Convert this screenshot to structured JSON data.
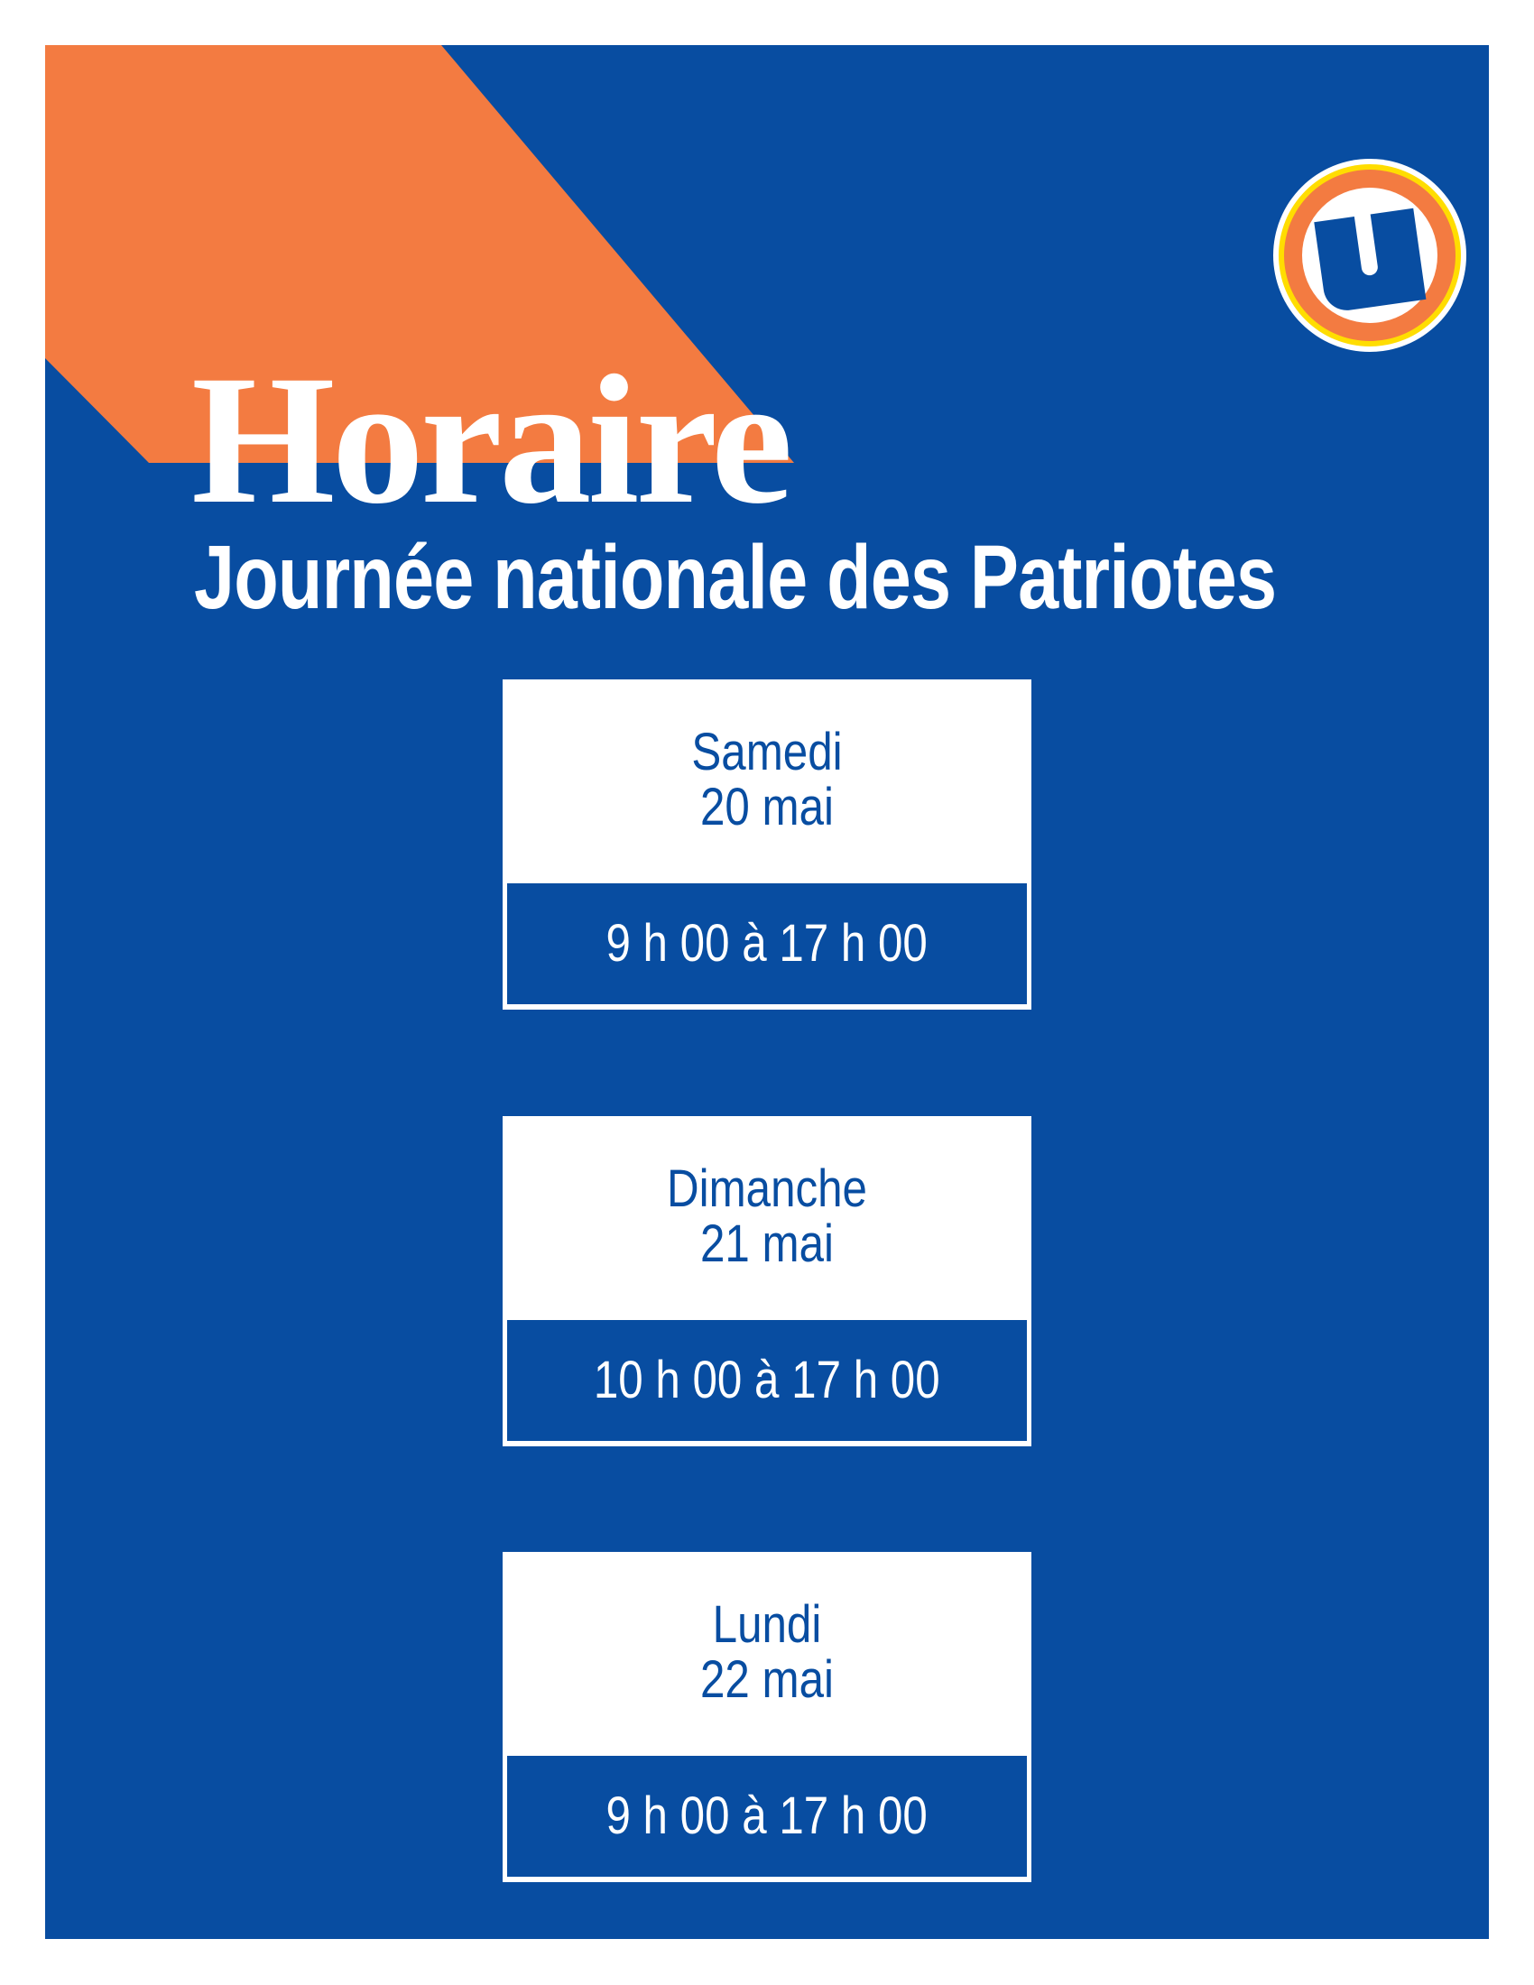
{
  "header": {
    "title": "Horaire",
    "subtitle": "Journée nationale des Patriotes"
  },
  "logo": {
    "name": "u-logo-icon",
    "letter": "U"
  },
  "schedule": [
    {
      "day": "Samedi",
      "date": "20 mai",
      "hours": "9 h 00 à 17 h 00"
    },
    {
      "day": "Dimanche",
      "date": "21 mai",
      "hours": "10 h 00 à 17 h 00"
    },
    {
      "day": "Lundi",
      "date": "22 mai",
      "hours": "9 h 00 à 17 h 00"
    }
  ],
  "colors": {
    "blue": "#084da1",
    "orange": "#f37b41",
    "yellow": "#ffdd00",
    "white": "#ffffff"
  }
}
